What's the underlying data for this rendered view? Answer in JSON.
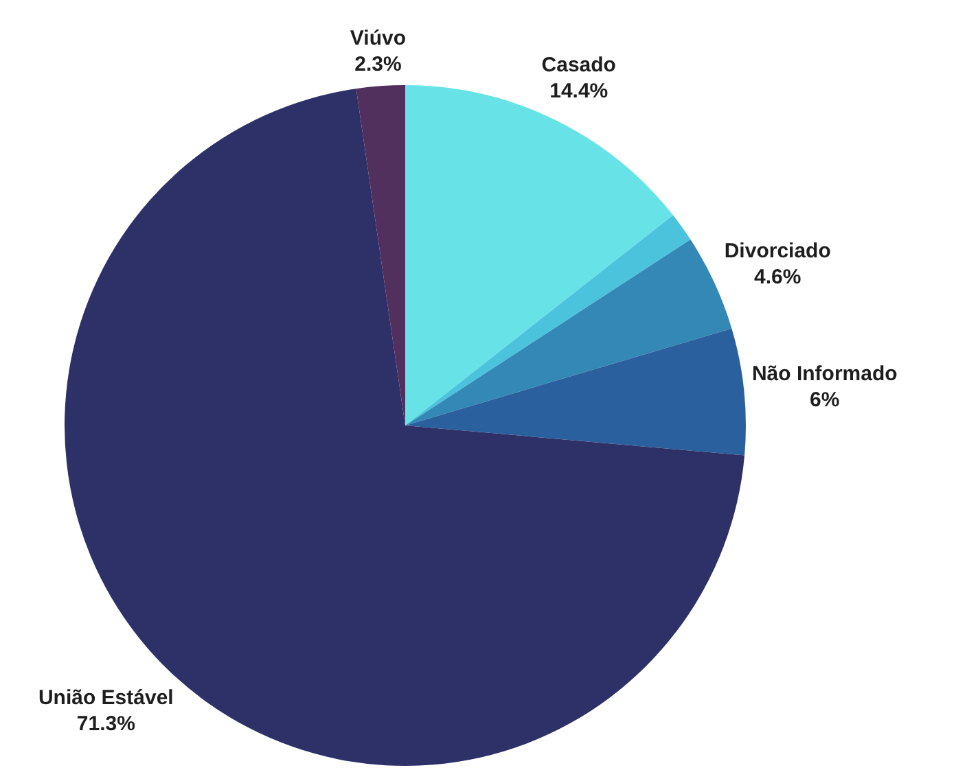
{
  "chart_data": {
    "type": "pie",
    "categories": [
      "Casado",
      null,
      "Divorciado",
      "Não Informado",
      "União Estável",
      "Viúvo"
    ],
    "values": [
      14.4,
      1.4,
      4.6,
      6,
      71.3,
      2.3
    ],
    "colors": [
      "#67e3e8",
      "#4cc3dd",
      "#3388b6",
      "#2b609e",
      "#2e3168",
      "#52305e"
    ],
    "value_labels": [
      "14.4%",
      null,
      "4.6%",
      "6%",
      "71.3%",
      "2.3%"
    ],
    "legend": false
  }
}
